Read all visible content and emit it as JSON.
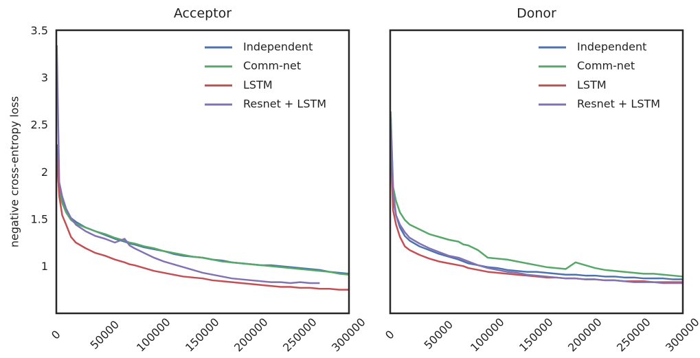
{
  "chart_data": [
    {
      "type": "line",
      "title": "Acceptor",
      "ylabel": "negative cross-entropy loss",
      "x": [
        500,
        3000,
        6000,
        10000,
        15000,
        20000,
        30000,
        40000,
        50000,
        60000,
        70000,
        75000,
        80000,
        90000,
        100000,
        110000,
        120000,
        130000,
        140000,
        150000,
        160000,
        170000,
        180000,
        190000,
        200000,
        210000,
        220000,
        230000,
        240000,
        250000,
        260000,
        270000,
        280000,
        290000,
        300000
      ],
      "series": [
        {
          "name": "Independent",
          "color": "#4c72b0",
          "values": [
            2.3,
            1.85,
            1.7,
            1.6,
            1.52,
            1.48,
            1.42,
            1.38,
            1.34,
            1.3,
            1.27,
            1.25,
            1.24,
            1.21,
            1.19,
            1.17,
            1.14,
            1.12,
            1.11,
            1.1,
            1.08,
            1.07,
            1.05,
            1.04,
            1.03,
            1.02,
            1.02,
            1.01,
            1.0,
            0.99,
            0.98,
            0.97,
            0.95,
            0.94,
            0.93
          ]
        },
        {
          "name": "Comm-net",
          "color": "#55a868",
          "values": [
            2.1,
            1.8,
            1.68,
            1.58,
            1.5,
            1.46,
            1.42,
            1.38,
            1.35,
            1.31,
            1.28,
            1.26,
            1.25,
            1.22,
            1.2,
            1.17,
            1.15,
            1.13,
            1.11,
            1.1,
            1.08,
            1.06,
            1.05,
            1.04,
            1.03,
            1.02,
            1.01,
            1.0,
            0.99,
            0.98,
            0.97,
            0.96,
            0.95,
            0.93,
            0.92
          ]
        },
        {
          "name": "LSTM",
          "color": "#c44e52",
          "values": [
            2.2,
            1.75,
            1.55,
            1.45,
            1.32,
            1.26,
            1.2,
            1.15,
            1.12,
            1.08,
            1.05,
            1.03,
            1.02,
            0.99,
            0.96,
            0.94,
            0.92,
            0.9,
            0.89,
            0.88,
            0.86,
            0.85,
            0.84,
            0.83,
            0.82,
            0.81,
            0.8,
            0.79,
            0.79,
            0.78,
            0.78,
            0.77,
            0.77,
            0.76,
            0.76
          ]
        },
        {
          "name": "Resnet + LSTM",
          "color": "#8172b2",
          "values": [
            3.35,
            1.9,
            1.75,
            1.62,
            1.52,
            1.45,
            1.38,
            1.33,
            1.3,
            1.26,
            1.3,
            1.23,
            1.2,
            1.15,
            1.1,
            1.06,
            1.03,
            1.0,
            0.97,
            0.94,
            0.92,
            0.9,
            0.88,
            0.87,
            0.86,
            0.85,
            0.84,
            0.84,
            0.83,
            0.84,
            0.83,
            0.83,
            null,
            null,
            null
          ]
        }
      ],
      "xlim": [
        0,
        300000
      ],
      "xticks": [
        0,
        50000,
        100000,
        150000,
        200000,
        250000,
        300000
      ],
      "ylim": [
        0.51,
        3.51
      ],
      "yticks": [
        1.0,
        1.5,
        2.0,
        2.5,
        3.0,
        3.5
      ],
      "legend": "upper right"
    },
    {
      "type": "line",
      "title": "Donor",
      "x": [
        500,
        3000,
        6000,
        10000,
        15000,
        20000,
        30000,
        40000,
        50000,
        60000,
        70000,
        75000,
        80000,
        90000,
        100000,
        110000,
        120000,
        130000,
        140000,
        150000,
        160000,
        170000,
        180000,
        190000,
        200000,
        210000,
        220000,
        230000,
        240000,
        250000,
        260000,
        270000,
        280000,
        290000,
        300000
      ],
      "series": [
        {
          "name": "Independent",
          "color": "#4c72b0",
          "values": [
            2.4,
            1.75,
            1.55,
            1.42,
            1.33,
            1.28,
            1.22,
            1.18,
            1.14,
            1.11,
            1.08,
            1.06,
            1.04,
            1.02,
            1.0,
            0.99,
            0.97,
            0.96,
            0.95,
            0.95,
            0.94,
            0.93,
            0.92,
            0.92,
            0.91,
            0.91,
            0.9,
            0.9,
            0.89,
            0.89,
            0.88,
            0.88,
            0.88,
            0.87,
            0.87
          ]
        },
        {
          "name": "Comm-net",
          "color": "#55a868",
          "values": [
            2.65,
            1.85,
            1.7,
            1.58,
            1.5,
            1.45,
            1.4,
            1.35,
            1.32,
            1.29,
            1.27,
            1.24,
            1.23,
            1.18,
            1.1,
            1.09,
            1.08,
            1.06,
            1.04,
            1.02,
            1.0,
            0.99,
            0.98,
            1.05,
            1.02,
            0.99,
            0.97,
            0.96,
            0.95,
            0.94,
            0.93,
            0.93,
            0.92,
            0.91,
            0.9
          ]
        },
        {
          "name": "LSTM",
          "color": "#c44e52",
          "values": [
            2.3,
            1.6,
            1.45,
            1.32,
            1.22,
            1.18,
            1.13,
            1.09,
            1.06,
            1.04,
            1.02,
            1.01,
            0.99,
            0.97,
            0.95,
            0.94,
            0.93,
            0.92,
            0.91,
            0.9,
            0.89,
            0.89,
            0.88,
            0.88,
            0.87,
            0.87,
            0.86,
            0.86,
            0.85,
            0.85,
            0.85,
            0.84,
            0.84,
            0.84,
            0.84
          ]
        },
        {
          "name": "Resnet + LSTM",
          "color": "#8172b2",
          "values": [
            2.6,
            1.8,
            1.55,
            1.45,
            1.37,
            1.31,
            1.25,
            1.2,
            1.16,
            1.12,
            1.1,
            1.08,
            1.06,
            1.02,
            0.99,
            0.97,
            0.95,
            0.94,
            0.92,
            0.91,
            0.9,
            0.89,
            0.88,
            0.88,
            0.87,
            0.87,
            0.86,
            0.86,
            0.85,
            0.84,
            0.84,
            0.84,
            0.83,
            0.83,
            0.83
          ]
        }
      ],
      "xlim": [
        0,
        300000
      ],
      "xticks": [
        0,
        50000,
        100000,
        150000,
        200000,
        250000,
        300000
      ],
      "ylim": [
        0.51,
        3.51
      ],
      "legend": "upper right"
    }
  ]
}
